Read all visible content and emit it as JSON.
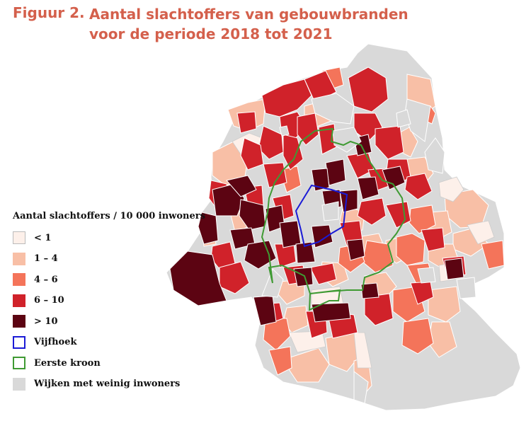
{
  "figure": {
    "label": "Figuur 2.",
    "title_lines": [
      "Aantal slachtoffers van gebouwbranden",
      "voor de periode 2018 tot 2021"
    ]
  },
  "legend": {
    "title": "Aantal slachtoffers / 10 000 inwoners",
    "items": [
      {
        "label": "< 1",
        "fill": "#fdf0ea",
        "stroke": "#bbbbbb",
        "key": "lt1"
      },
      {
        "label": "1 – 4",
        "fill": "#f8bfa6",
        "stroke": "#f8bfa6",
        "key": "c1_4"
      },
      {
        "label": "4 – 6",
        "fill": "#f4745a",
        "stroke": "#f4745a",
        "key": "c4_6"
      },
      {
        "label": "6 – 10",
        "fill": "#d0222a",
        "stroke": "#d0222a",
        "key": "c6_10"
      },
      {
        "label": ">  10",
        "fill": "#5c0412",
        "stroke": "#5c0412",
        "key": "gt10"
      },
      {
        "label": "Vijfhoek",
        "fill": "#ffffff",
        "stroke": "#1b1bd6",
        "key": "pentagon"
      },
      {
        "label": "Eerste kroon",
        "fill": "#ffffff",
        "stroke": "#3f9a33",
        "key": "crown"
      },
      {
        "label": "Wijken met weinig inwoners",
        "fill": "#d9d9d9",
        "stroke": "#d9d9d9",
        "key": "low"
      }
    ]
  }
}
